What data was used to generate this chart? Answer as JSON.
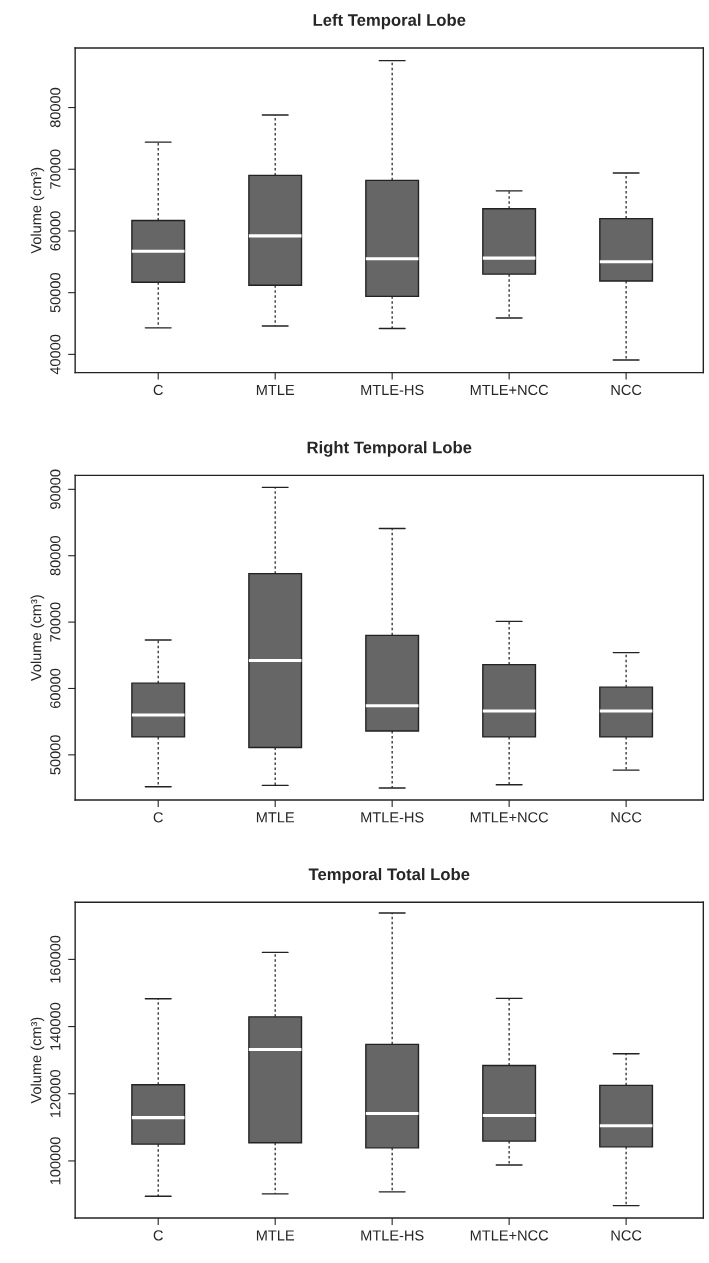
{
  "chart_data": [
    {
      "type": "box",
      "title": "Left Temporal Lobe",
      "ylabel": "Volume (cm³)",
      "categories": [
        "C",
        "MTLE",
        "MTLE-HS",
        "MTLE+NCC",
        "NCC"
      ],
      "ylim": [
        37050,
        89650
      ],
      "yticks": [
        40000,
        50000,
        60000,
        70000,
        80000
      ],
      "grid": false,
      "series": [
        {
          "color": "#666666",
          "boxes": [
            {
              "low": 44300,
              "q1": 51700,
              "median": 56700,
              "q3": 61700,
              "high": 74400
            },
            {
              "low": 44600,
              "q1": 51200,
              "median": 59200,
              "q3": 69000,
              "high": 78800
            },
            {
              "low": 44200,
              "q1": 49400,
              "median": 55500,
              "q3": 68200,
              "high": 87600
            },
            {
              "low": 45900,
              "q1": 53000,
              "median": 55600,
              "q3": 63600,
              "high": 66500
            },
            {
              "low": 39100,
              "q1": 51900,
              "median": 55000,
              "q3": 62000,
              "high": 69400
            }
          ]
        }
      ]
    },
    {
      "type": "box",
      "title": "Right Temporal Lobe",
      "ylabel": "Volume (cm³)",
      "categories": [
        "C",
        "MTLE",
        "MTLE-HS",
        "MTLE+NCC",
        "NCC"
      ],
      "ylim": [
        43200,
        92100
      ],
      "yticks": [
        50000,
        60000,
        70000,
        80000,
        90000
      ],
      "grid": false,
      "series": [
        {
          "color": "#666666",
          "boxes": [
            {
              "low": 45200,
              "q1": 52700,
              "median": 56000,
              "q3": 60800,
              "high": 67300
            },
            {
              "low": 45400,
              "q1": 51100,
              "median": 64200,
              "q3": 77300,
              "high": 90300
            },
            {
              "low": 45000,
              "q1": 53600,
              "median": 57400,
              "q3": 68000,
              "high": 84100
            },
            {
              "low": 45500,
              "q1": 52700,
              "median": 56600,
              "q3": 63600,
              "high": 70100
            },
            {
              "low": 47700,
              "q1": 52700,
              "median": 56600,
              "q3": 60200,
              "high": 65400
            }
          ]
        }
      ]
    },
    {
      "type": "box",
      "title": "Temporal Total Lobe",
      "ylabel": "Volume (cm³)",
      "categories": [
        "C",
        "MTLE",
        "MTLE-HS",
        "MTLE+NCC",
        "NCC"
      ],
      "ylim": [
        83000,
        177000
      ],
      "yticks": [
        100000,
        120000,
        140000,
        160000
      ],
      "grid": false,
      "series": [
        {
          "color": "#666666",
          "boxes": [
            {
              "low": 89500,
              "q1": 105000,
              "median": 112900,
              "q3": 122700,
              "high": 148300
            },
            {
              "low": 90200,
              "q1": 105400,
              "median": 133200,
              "q3": 142900,
              "high": 162100
            },
            {
              "low": 90800,
              "q1": 103900,
              "median": 114100,
              "q3": 134700,
              "high": 173800
            },
            {
              "low": 98800,
              "q1": 105900,
              "median": 113500,
              "q3": 128400,
              "high": 148400
            },
            {
              "low": 86700,
              "q1": 104200,
              "median": 110500,
              "q3": 122500,
              "high": 131900
            }
          ]
        }
      ]
    }
  ]
}
